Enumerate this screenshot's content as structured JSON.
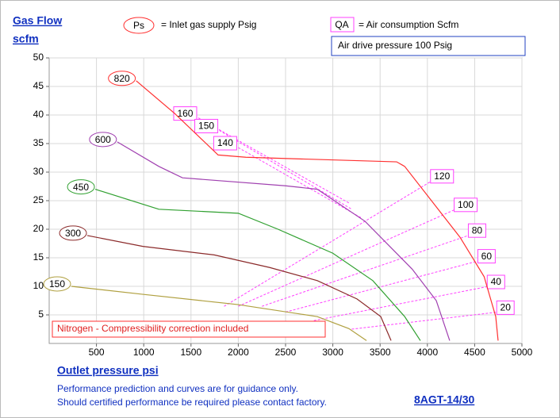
{
  "chart_data": {
    "type": "line",
    "y_label_1": "Gas Flow",
    "y_label_2": "scfm",
    "x_label": "Outlet pressure   psi",
    "ps_key": "Ps",
    "ps_text": "= Inlet gas supply  Psig",
    "qa_key": "QA",
    "qa_text": "= Air consumption  Scfm",
    "drive_note": "Air drive pressure  100 Psig",
    "gas_note": "Nitrogen - Compressibility correction included",
    "footer_1": "Performance prediction and curves are for guidance only.",
    "footer_2": "Should certified performance be required please contact factory.",
    "model": "8AGT-14/30",
    "xlim": [
      0,
      5000
    ],
    "ylim": [
      0,
      50
    ],
    "xticks": [
      500,
      1000,
      1500,
      2000,
      2500,
      3000,
      3500,
      4000,
      4500,
      5000
    ],
    "yticks": [
      5,
      10,
      15,
      20,
      25,
      30,
      35,
      40,
      45,
      50
    ],
    "grid": true,
    "series": [
      {
        "name": "820",
        "color": "#ff3030",
        "x": [
          920,
          1325,
          1787,
          2080,
          3675,
          3760,
          4345,
          4600,
          4723,
          4748
        ],
        "values": [
          46,
          40.3,
          33,
          32.6,
          31.8,
          31,
          18.6,
          11.7,
          4.7,
          0.5
        ]
      },
      {
        "name": "600",
        "color": "#a040b0",
        "x": [
          720,
          1160,
          1410,
          2500,
          2836,
          3340,
          3840,
          4094,
          4236
        ],
        "values": [
          35.3,
          31,
          29,
          27.6,
          27,
          21.4,
          13,
          7.5,
          0.5
        ]
      },
      {
        "name": "450",
        "color": "#30a030",
        "x": [
          487,
          1160,
          2000,
          2420,
          3000,
          3423,
          3760,
          3926
        ],
        "values": [
          27,
          23.5,
          22.8,
          20,
          15.8,
          11,
          4.7,
          0.5
        ]
      },
      {
        "name": "300",
        "color": "#8b2a2a",
        "x": [
          403,
          990,
          1745,
          2332,
          2836,
          3255,
          3507,
          3616
        ],
        "values": [
          18.9,
          17,
          15.5,
          13.3,
          11,
          7.8,
          4.7,
          0.5
        ]
      },
      {
        "name": "150",
        "color": "#b0a040",
        "x": [
          235,
          990,
          2000,
          2836,
          3170,
          3356
        ],
        "values": [
          10,
          8.6,
          6.8,
          4.7,
          2.6,
          0.5
        ]
      }
    ],
    "qa_color": "#ff40ff",
    "qa_lines": [
      {
        "name": "160",
        "x": [
          1577,
          3170
        ],
        "values": [
          39.5,
          24.6
        ]
      },
      {
        "name": "150",
        "x": [
          1800,
          3200
        ],
        "values": [
          37.3,
          23.5
        ]
      },
      {
        "name": "140",
        "x": [
          2000,
          3300
        ],
        "values": [
          34.3,
          22
        ]
      },
      {
        "name": "120",
        "x": [
          1850,
          4050
        ],
        "values": [
          6.5,
          28.5
        ]
      },
      {
        "name": "100",
        "x": [
          2000,
          4300
        ],
        "values": [
          6.5,
          23.5
        ]
      },
      {
        "name": "80",
        "x": [
          2250,
          4450
        ],
        "values": [
          6.5,
          19
        ]
      },
      {
        "name": "60",
        "x": [
          2500,
          4550
        ],
        "values": [
          5.5,
          14.5
        ]
      },
      {
        "name": "40",
        "x": [
          2800,
          4650
        ],
        "values": [
          4,
          10
        ]
      },
      {
        "name": "20",
        "x": [
          3200,
          4750
        ],
        "values": [
          2.5,
          5.5
        ]
      }
    ]
  }
}
